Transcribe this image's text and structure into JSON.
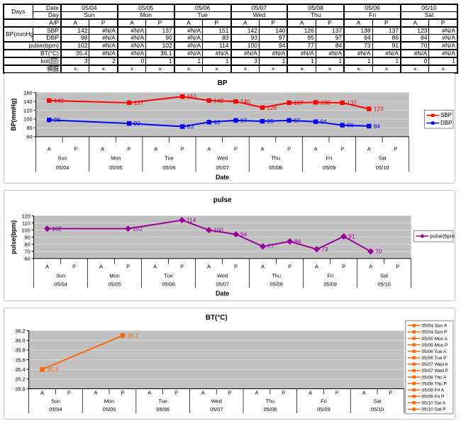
{
  "colors": {
    "plot_bg": "#c0c0c0",
    "grid": "#d9d9d9",
    "axis": "#000000",
    "sbp": "#ff0000",
    "dbp": "#0000ff",
    "pulse": "#990099",
    "bt": "#ff6600"
  },
  "table": {
    "corner_label": "Days",
    "row_labels": {
      "date": "Date",
      "day": "Day",
      "ap": "A/P",
      "bp_group": "BP(mmHg)",
      "sbp": "SBP",
      "dbp": "DBP",
      "pulse": "pulse(bpm)",
      "bt": "BT(°C)",
      "kot": "kot(回)",
      "tonpuku": "頓服"
    },
    "dates": [
      "05/04",
      "05/05",
      "05/06",
      "05/07",
      "05/08",
      "05/09",
      "05/10"
    ],
    "days": [
      "Sun",
      "Mon",
      "Tue",
      "Wed",
      "Thu",
      "Fri",
      "Sat"
    ],
    "ap": [
      "A",
      "P"
    ],
    "values": {
      "sbp": [
        "142",
        "#N/A",
        "#N/A",
        "137",
        "#N/A",
        "151",
        "142",
        "140",
        "126",
        "137",
        "138",
        "137",
        "123",
        "#N/A"
      ],
      "dbp": [
        "98",
        "#N/A",
        "#N/A",
        "90",
        "#N/A",
        "83",
        "93",
        "97",
        "95",
        "97",
        "94",
        "86",
        "84",
        "#N/A"
      ],
      "pulse": [
        "102",
        "#N/A",
        "#N/A",
        "102",
        "#N/A",
        "114",
        "100",
        "94",
        "77",
        "84",
        "73",
        "91",
        "70",
        "#N/A"
      ],
      "bt": [
        "35.4",
        "#N/A",
        "#N/A",
        "36.1",
        "#N/A",
        "#N/A",
        "#N/A",
        "#N/A",
        "#N/A",
        "#N/A",
        "#N/A",
        "#N/A",
        "#N/A",
        "#N/A"
      ],
      "kot": [
        "3",
        "2",
        "0",
        "1",
        "1",
        "1",
        "3",
        "1",
        "1",
        "1",
        "1",
        "1",
        "0",
        "1"
      ],
      "tonpuku": [
        "×",
        "×",
        "×",
        "×",
        "×",
        "×",
        "×",
        "×",
        "×",
        "×",
        "×",
        "×",
        "×",
        "×"
      ]
    }
  },
  "chart_data": [
    {
      "type": "line",
      "title": "BP",
      "ylabel": "BP(mmHg)",
      "xlabel": "Date",
      "ylim": [
        60,
        160
      ],
      "ytick_step": 20,
      "ydecimals": 0,
      "grid": true,
      "categories": {
        "dates": [
          "05/04",
          "05/05",
          "05/06",
          "05/07",
          "05/08",
          "05/09",
          "05/10"
        ],
        "days": [
          "Sun",
          "Mon",
          "Tue",
          "Wed",
          "Thu",
          "Fri",
          "Sat"
        ],
        "ap": [
          "A",
          "P"
        ]
      },
      "series": [
        {
          "name": "SBP",
          "color": "#ff0000",
          "marker": "square",
          "values": [
            142,
            null,
            null,
            137,
            null,
            151,
            142,
            140,
            126,
            137,
            138,
            137,
            123,
            null
          ]
        },
        {
          "name": "DBP",
          "color": "#0000ff",
          "marker": "square",
          "values": [
            98,
            null,
            null,
            90,
            null,
            83,
            93,
            97,
            95,
            97,
            94,
            86,
            84,
            null
          ]
        }
      ],
      "legend": {
        "position": "right",
        "entries": [
          {
            "label": "SBP",
            "color": "#ff0000",
            "marker": "square"
          },
          {
            "label": "DBP",
            "color": "#0000ff",
            "marker": "square"
          }
        ]
      }
    },
    {
      "type": "line",
      "title": "pulse",
      "ylabel": "pulse(bpm)",
      "xlabel": "Date",
      "ylim": [
        60,
        120
      ],
      "ytick_step": 10,
      "ydecimals": 0,
      "grid": true,
      "categories": {
        "dates": [
          "05/04",
          "05/05",
          "05/06",
          "05/07",
          "05/08",
          "05/09",
          "05/10"
        ],
        "days": [
          "Sun",
          "Mon",
          "Tue",
          "Wed",
          "Thu",
          "Fri",
          "Sat"
        ],
        "ap": [
          "A",
          "P"
        ]
      },
      "series": [
        {
          "name": "pulse(bpm)",
          "color": "#990099",
          "marker": "diamond",
          "values": [
            102,
            null,
            null,
            102,
            null,
            114,
            100,
            94,
            77,
            84,
            73,
            91,
            70,
            null
          ]
        }
      ],
      "legend": {
        "position": "right",
        "entries": [
          {
            "label": "pulse(bpm)",
            "color": "#990099",
            "marker": "diamond"
          }
        ]
      }
    },
    {
      "type": "line",
      "title": "BT(°C)",
      "ylabel": "",
      "xlabel": "",
      "ylim": [
        35.0,
        36.2
      ],
      "ytick_step": 0.2,
      "ydecimals": 1,
      "grid": true,
      "categories": {
        "dates": [
          "05/04",
          "05/05",
          "05/06",
          "05/07",
          "05/08",
          "05/09",
          "05/10"
        ],
        "days": [
          "Sun",
          "Mon",
          "Tue",
          "Wed",
          "Thu",
          "Fri",
          "Sat"
        ],
        "ap": [
          "A",
          "P"
        ]
      },
      "series": [
        {
          "name": "BT",
          "color": "#ff6600",
          "marker": "square",
          "values": [
            35.4,
            null,
            null,
            36.1,
            null,
            null,
            null,
            null,
            null,
            null,
            null,
            null,
            null,
            null
          ]
        }
      ],
      "legend": {
        "position": "right",
        "entries": [
          {
            "label": "05/04 Sun A",
            "color": "#ff6600",
            "marker": "square"
          },
          {
            "label": "05/04 Sun P",
            "color": "#ff6600",
            "marker": "square"
          },
          {
            "label": "05/05 Mon A",
            "color": "#ff6600",
            "marker": "square"
          },
          {
            "label": "05/05 Mon P",
            "color": "#ff6600",
            "marker": "square"
          },
          {
            "label": "05/06 Tue A",
            "color": "#ff6600",
            "marker": "square"
          },
          {
            "label": "05/06 Tue P",
            "color": "#ff6600",
            "marker": "square"
          },
          {
            "label": "05/07 Wed A",
            "color": "#ff6600",
            "marker": "square"
          },
          {
            "label": "05/07 Wed P",
            "color": "#ff6600",
            "marker": "square"
          },
          {
            "label": "05/08 Thu A",
            "color": "#ff6600",
            "marker": "square"
          },
          {
            "label": "05/08 Thu P",
            "color": "#ff6600",
            "marker": "square"
          },
          {
            "label": "05/09 Fri A",
            "color": "#ff6600",
            "marker": "square"
          },
          {
            "label": "05/09 Fri P",
            "color": "#ff6600",
            "marker": "square"
          },
          {
            "label": "05/10 Sat A",
            "color": "#ff6600",
            "marker": "square"
          },
          {
            "label": "05/10 Sat P",
            "color": "#ff6600",
            "marker": "square"
          }
        ]
      }
    }
  ]
}
